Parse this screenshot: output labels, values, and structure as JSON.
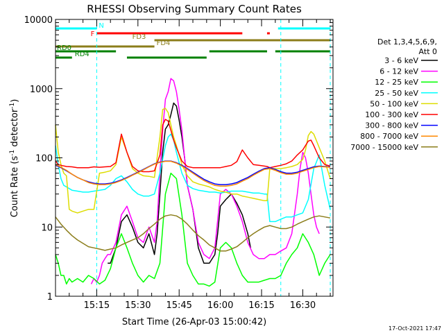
{
  "chart_data": {
    "type": "line",
    "title": "RHESSI Observing Summary Count Rates",
    "xlabel": "Start Time (26-Apr-03 15:00:42)",
    "ylabel_main": "Count Rate (s",
    "ylabel_exp1": "-1",
    "ylabel_mid": " detector",
    "ylabel_exp2": "-1",
    "ylabel_end": ")",
    "yscale": "log",
    "ylim": [
      1,
      10000
    ],
    "xlim_minutes": [
      0,
      101
    ],
    "x_tick_labels": [
      "15:15",
      "15:30",
      "15:45",
      "16:00",
      "16:15",
      "16:30"
    ],
    "x_ticks_minutes": [
      15,
      30,
      45,
      60,
      75,
      90
    ],
    "y_tick_labels": [
      "1",
      "10",
      "100",
      "1000",
      "10000"
    ],
    "y_ticks": [
      1,
      10,
      100,
      1000,
      10000
    ],
    "legend": {
      "header_line1": "Det 1,3,4,5,6,9,",
      "header_line2": "Att 0",
      "placement": "right",
      "entries": [
        {
          "label": "3 - 6 keV",
          "color": "#000000"
        },
        {
          "label": "6 - 12 keV",
          "color": "#ff00ff"
        },
        {
          "label": "12 - 25 keV",
          "color": "#00ff00"
        },
        {
          "label": "25 - 50 keV",
          "color": "#00ffff"
        },
        {
          "label": "50 - 100 keV",
          "color": "#dddd00"
        },
        {
          "label": "100 - 300 keV",
          "color": "#ff0000"
        },
        {
          "label": "300 - 800 keV",
          "color": "#0000ff"
        },
        {
          "label": "800 - 7000 keV",
          "color": "#ff8800"
        },
        {
          "label": "7000 - 15000 keV",
          "color": "#8b7d1a"
        }
      ]
    },
    "series": [
      {
        "name": "3 - 6 keV",
        "color": "#000000",
        "x": [
          19,
          20,
          22,
          24,
          26,
          28,
          30,
          32,
          34,
          36,
          37,
          38,
          39,
          40,
          41,
          42,
          43,
          44,
          45,
          46,
          47,
          48,
          50,
          52,
          54,
          56,
          58,
          59,
          60,
          62,
          64,
          66,
          68,
          70,
          71
        ],
        "y": [
          3,
          3,
          5,
          12,
          15,
          10,
          6,
          5,
          8,
          4,
          8,
          30,
          120,
          260,
          300,
          420,
          620,
          560,
          350,
          200,
          100,
          40,
          18,
          5,
          3,
          3,
          4,
          8,
          20,
          25,
          30,
          22,
          15,
          8,
          5
        ]
      },
      {
        "name": "6 - 12 keV",
        "color": "#ff00ff",
        "x": [
          13,
          14,
          15,
          16,
          17,
          18,
          19,
          20,
          22,
          24,
          26,
          28,
          30,
          32,
          34,
          36,
          37,
          38,
          39,
          40,
          41,
          42,
          43,
          44,
          45,
          46,
          47,
          48,
          50,
          52,
          54,
          56,
          58,
          60,
          62,
          64,
          66,
          68,
          70,
          72,
          74,
          76,
          78,
          80,
          82,
          84,
          86,
          88,
          89,
          90,
          91,
          92,
          93,
          94,
          95,
          96
        ],
        "y": [
          1.5,
          1.8,
          1.6,
          2,
          3,
          3.5,
          4,
          4,
          6,
          15,
          20,
          12,
          7,
          6,
          10,
          6,
          12,
          60,
          250,
          700,
          900,
          1400,
          1300,
          900,
          500,
          250,
          100,
          40,
          18,
          6,
          4,
          3.5,
          5,
          30,
          35,
          30,
          20,
          12,
          6,
          4,
          3.5,
          3.5,
          4,
          4,
          4.5,
          5,
          8,
          30,
          70,
          120,
          100,
          60,
          30,
          15,
          10,
          8
        ]
      },
      {
        "name": "12 - 25 keV",
        "color": "#00ff00",
        "x": [
          0,
          1,
          2,
          3,
          4,
          5,
          6,
          8,
          10,
          12,
          14,
          16,
          18,
          20,
          22,
          24,
          26,
          28,
          30,
          32,
          34,
          36,
          38,
          40,
          42,
          44,
          46,
          48,
          50,
          52,
          54,
          56,
          58,
          60,
          62,
          64,
          66,
          68,
          70,
          72,
          74,
          76,
          78,
          80,
          82,
          84,
          86,
          88,
          90,
          92,
          94,
          96,
          98,
          100
        ],
        "y": [
          4,
          3,
          2,
          2,
          1.5,
          1.8,
          1.6,
          1.8,
          1.6,
          2,
          1.8,
          1.5,
          1.7,
          2.5,
          5,
          8,
          5,
          3,
          2,
          1.6,
          2,
          1.8,
          3,
          30,
          60,
          50,
          15,
          3,
          2,
          1.5,
          1.5,
          1.4,
          1.6,
          5,
          6,
          5,
          3,
          2,
          1.6,
          1.6,
          1.6,
          1.7,
          1.8,
          1.8,
          2,
          3,
          4,
          5,
          8,
          6,
          4,
          2,
          3,
          4
        ]
      },
      {
        "name": "25 - 50 keV",
        "color": "#00ffff",
        "x": [
          0,
          1,
          2,
          3,
          4,
          5,
          6,
          8,
          10,
          12,
          14,
          16,
          18,
          20,
          22,
          24,
          26,
          28,
          30,
          32,
          34,
          36,
          38,
          40,
          41,
          42,
          43,
          44,
          46,
          48,
          50,
          52,
          54,
          56,
          58,
          60,
          62,
          64,
          66,
          68,
          70,
          72,
          74,
          76,
          77,
          78,
          80,
          82,
          84,
          86,
          88,
          90,
          92,
          94,
          96,
          98,
          100
        ],
        "y": [
          150,
          80,
          50,
          40,
          38,
          36,
          34,
          33,
          32,
          32,
          33,
          34,
          35,
          40,
          50,
          55,
          45,
          35,
          30,
          28,
          28,
          30,
          60,
          150,
          200,
          220,
          180,
          120,
          60,
          40,
          36,
          34,
          33,
          32,
          32,
          31,
          32,
          33,
          33,
          33,
          32,
          31,
          31,
          30,
          30,
          12,
          12,
          13,
          14,
          14,
          15,
          16,
          25,
          70,
          110,
          40,
          18
        ]
      },
      {
        "name": "50 - 100 keV",
        "color": "#dddd00",
        "x": [
          0,
          1,
          2,
          3,
          4,
          5,
          6,
          8,
          10,
          12,
          14,
          16,
          18,
          20,
          22,
          24,
          26,
          28,
          30,
          32,
          34,
          36,
          38,
          39,
          40,
          41,
          42,
          43,
          44,
          46,
          48,
          50,
          52,
          54,
          56,
          58,
          60,
          62,
          64,
          66,
          68,
          70,
          72,
          74,
          76,
          77,
          78,
          80,
          82,
          84,
          86,
          88,
          90,
          91,
          92,
          93,
          94,
          96,
          98,
          100
        ],
        "y": [
          300,
          120,
          80,
          60,
          55,
          18,
          17,
          16,
          17,
          18,
          18,
          60,
          62,
          65,
          80,
          200,
          120,
          70,
          60,
          55,
          54,
          52,
          200,
          500,
          520,
          450,
          300,
          200,
          150,
          80,
          55,
          45,
          42,
          40,
          38,
          35,
          33,
          32,
          30,
          30,
          28,
          27,
          26,
          25,
          24,
          24,
          70,
          70,
          70,
          72,
          75,
          80,
          95,
          130,
          210,
          240,
          220,
          140,
          90,
          50
        ]
      },
      {
        "name": "100 - 300 keV",
        "color": "#ff0000",
        "x": [
          0,
          1,
          2,
          4,
          6,
          8,
          10,
          12,
          14,
          16,
          18,
          20,
          22,
          24,
          26,
          28,
          30,
          32,
          34,
          36,
          38,
          39,
          40,
          41,
          42,
          43,
          44,
          46,
          48,
          50,
          52,
          54,
          56,
          58,
          60,
          62,
          64,
          66,
          68,
          70,
          72,
          74,
          76,
          77,
          78,
          80,
          82,
          84,
          86,
          88,
          90,
          92,
          93,
          94,
          96,
          98,
          100
        ],
        "y": [
          90,
          80,
          78,
          75,
          74,
          72,
          72,
          72,
          74,
          73,
          74,
          75,
          85,
          220,
          120,
          75,
          65,
          63,
          63,
          65,
          110,
          300,
          360,
          340,
          250,
          180,
          140,
          90,
          75,
          72,
          72,
          72,
          72,
          72,
          72,
          75,
          78,
          88,
          130,
          100,
          80,
          78,
          76,
          75,
          72,
          75,
          78,
          82,
          90,
          110,
          130,
          175,
          180,
          150,
          100,
          80,
          76
        ]
      },
      {
        "name": "300 - 800 keV",
        "color": "#0000ff",
        "x": [
          0,
          2,
          4,
          6,
          8,
          10,
          12,
          14,
          16,
          18,
          20,
          22,
          24,
          26,
          28,
          30,
          32,
          34,
          36,
          38,
          40,
          42,
          44,
          46,
          48,
          50,
          52,
          54,
          56,
          58,
          60,
          62,
          64,
          66,
          68,
          70,
          72,
          74,
          76,
          78,
          80,
          82,
          84,
          86,
          88,
          90,
          92,
          94,
          96,
          98,
          100
        ],
        "y": [
          78,
          72,
          65,
          58,
          52,
          48,
          45,
          43,
          42,
          42,
          43,
          45,
          48,
          52,
          57,
          62,
          68,
          75,
          82,
          87,
          90,
          90,
          85,
          78,
          70,
          62,
          55,
          49,
          45,
          42,
          41,
          41,
          42,
          44,
          48,
          52,
          58,
          64,
          70,
          72,
          68,
          63,
          60,
          60,
          62,
          66,
          70,
          74,
          76,
          75,
          74
        ]
      },
      {
        "name": "800 - 7000 keV",
        "color": "#ff8800",
        "x": [
          0,
          2,
          4,
          6,
          8,
          10,
          12,
          14,
          16,
          18,
          20,
          22,
          24,
          26,
          28,
          30,
          32,
          34,
          36,
          38,
          40,
          42,
          44,
          46,
          48,
          50,
          52,
          54,
          56,
          58,
          60,
          62,
          64,
          66,
          68,
          70,
          72,
          74,
          76,
          78,
          80,
          82,
          84,
          86,
          88,
          90,
          92,
          94,
          96,
          98,
          100
        ],
        "y": [
          80,
          73,
          66,
          58,
          52,
          48,
          44,
          42,
          41,
          41,
          42,
          44,
          47,
          51,
          56,
          61,
          67,
          74,
          81,
          86,
          89,
          89,
          84,
          76,
          68,
          60,
          53,
          47,
          43,
          40,
          39,
          39,
          40,
          42,
          46,
          50,
          56,
          62,
          68,
          70,
          66,
          61,
          58,
          58,
          60,
          64,
          68,
          72,
          75,
          74,
          73
        ]
      },
      {
        "name": "7000 - 15000 keV",
        "color": "#8b7d1a",
        "x": [
          0,
          2,
          4,
          6,
          8,
          10,
          12,
          14,
          16,
          18,
          20,
          22,
          24,
          26,
          28,
          30,
          32,
          34,
          36,
          38,
          40,
          42,
          44,
          46,
          48,
          50,
          52,
          54,
          56,
          58,
          60,
          62,
          64,
          66,
          68,
          70,
          72,
          74,
          76,
          78,
          80,
          82,
          84,
          86,
          88,
          90,
          92,
          94,
          96,
          98,
          100
        ],
        "y": [
          14,
          11,
          9,
          7.5,
          6.5,
          5.8,
          5.2,
          5,
          4.8,
          4.6,
          4.8,
          5,
          5.5,
          6,
          6.5,
          7,
          8,
          9.5,
          11,
          13,
          14.5,
          15,
          14.5,
          13,
          11,
          9,
          7.5,
          6.5,
          5.5,
          5,
          4.5,
          4.5,
          4.8,
          5.2,
          6,
          7,
          8,
          9,
          10,
          10.5,
          10,
          9.5,
          9.5,
          10,
          11,
          12,
          13,
          14,
          14.5,
          14,
          13.5
        ]
      }
    ],
    "flag_bars": [
      {
        "label": "N",
        "color": "#00ffff",
        "segments": [
          [
            0,
            15
          ],
          [
            81,
            100
          ]
        ]
      },
      {
        "label": "F",
        "color": "#ff0000",
        "segments": [
          [
            15,
            68
          ],
          [
            77,
            78
          ]
        ]
      },
      {
        "label": "FD3",
        "color": "#8b7d1a",
        "segments": [
          [
            36,
            100
          ]
        ]
      },
      {
        "label": "FD4",
        "color": "#8b7d1a",
        "segments": [
          [
            0,
            36
          ]
        ]
      },
      {
        "label": "RD0",
        "color": "#008000",
        "segments": [
          [
            0,
            22
          ],
          [
            56,
            77
          ],
          [
            80,
            100
          ]
        ]
      },
      {
        "label": "RD4",
        "color": "#008000",
        "segments": [
          [
            0,
            6
          ],
          [
            26,
            55
          ]
        ]
      }
    ],
    "vertical_markers_minutes": [
      15,
      82,
      100
    ],
    "footer_date": "17-Oct-2021 17:47"
  }
}
